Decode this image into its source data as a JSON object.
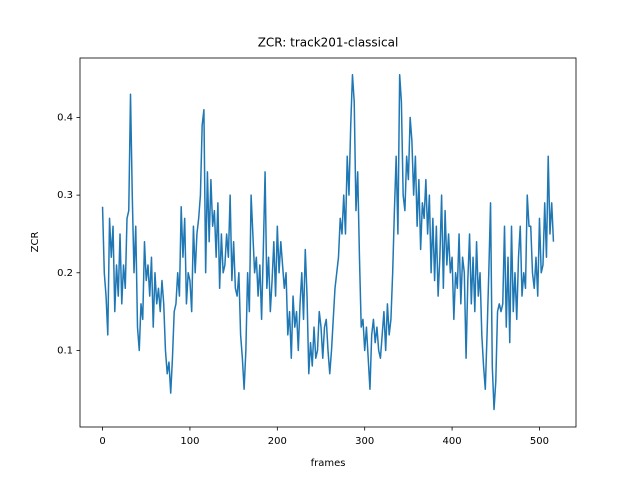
{
  "chart_data": {
    "type": "line",
    "title": "ZCR: track201-classical",
    "x_label": "frames",
    "y_label": "ZCR",
    "color": "#1f77b4",
    "xlim": [
      -25.8,
      541.8
    ],
    "ylim": [
      0.0014,
      0.4766
    ],
    "xticks": [
      0,
      100,
      200,
      300,
      400,
      500
    ],
    "yticks": [
      0.1,
      0.2,
      0.3,
      0.4
    ],
    "grid": false,
    "x": [
      0,
      2,
      4,
      6,
      8,
      10,
      12,
      14,
      16,
      18,
      20,
      22,
      24,
      26,
      28,
      30,
      32,
      34,
      36,
      38,
      40,
      42,
      44,
      46,
      48,
      50,
      52,
      54,
      56,
      58,
      60,
      62,
      64,
      66,
      68,
      70,
      72,
      74,
      76,
      78,
      80,
      82,
      84,
      86,
      88,
      90,
      92,
      94,
      96,
      98,
      100,
      102,
      104,
      106,
      108,
      110,
      112,
      114,
      116,
      118,
      120,
      122,
      124,
      126,
      128,
      130,
      132,
      134,
      136,
      138,
      140,
      142,
      144,
      146,
      148,
      150,
      152,
      154,
      156,
      158,
      160,
      162,
      164,
      166,
      168,
      170,
      172,
      174,
      176,
      178,
      180,
      182,
      184,
      186,
      188,
      190,
      192,
      194,
      196,
      198,
      200,
      202,
      204,
      206,
      208,
      210,
      212,
      214,
      216,
      218,
      220,
      222,
      224,
      226,
      228,
      230,
      232,
      234,
      236,
      238,
      240,
      242,
      244,
      246,
      248,
      250,
      252,
      254,
      256,
      258,
      260,
      262,
      264,
      266,
      268,
      270,
      272,
      274,
      276,
      278,
      280,
      282,
      284,
      286,
      288,
      290,
      292,
      294,
      296,
      298,
      300,
      302,
      304,
      306,
      308,
      310,
      312,
      314,
      316,
      318,
      320,
      322,
      324,
      326,
      328,
      330,
      332,
      334,
      336,
      338,
      340,
      342,
      344,
      346,
      348,
      350,
      352,
      354,
      356,
      358,
      360,
      362,
      364,
      366,
      368,
      370,
      372,
      374,
      376,
      378,
      380,
      382,
      384,
      386,
      388,
      390,
      392,
      394,
      396,
      398,
      400,
      402,
      404,
      406,
      408,
      410,
      412,
      414,
      416,
      418,
      420,
      422,
      424,
      426,
      428,
      430,
      432,
      434,
      436,
      438,
      440,
      442,
      444,
      446,
      448,
      450,
      452,
      454,
      456,
      458,
      460,
      462,
      464,
      466,
      468,
      470,
      472,
      474,
      476,
      478,
      480,
      482,
      484,
      486,
      488,
      490,
      492,
      494,
      496,
      498,
      500,
      502,
      504,
      506,
      508,
      510,
      512,
      514,
      516
    ],
    "values": [
      0.285,
      0.2,
      0.17,
      0.12,
      0.27,
      0.22,
      0.26,
      0.15,
      0.21,
      0.17,
      0.25,
      0.16,
      0.21,
      0.18,
      0.27,
      0.28,
      0.43,
      0.3,
      0.2,
      0.26,
      0.13,
      0.1,
      0.16,
      0.14,
      0.24,
      0.19,
      0.21,
      0.17,
      0.22,
      0.13,
      0.2,
      0.16,
      0.18,
      0.15,
      0.19,
      0.16,
      0.1,
      0.07,
      0.085,
      0.045,
      0.09,
      0.15,
      0.16,
      0.2,
      0.17,
      0.285,
      0.22,
      0.27,
      0.16,
      0.2,
      0.19,
      0.15,
      0.26,
      0.2,
      0.25,
      0.27,
      0.3,
      0.39,
      0.41,
      0.2,
      0.33,
      0.24,
      0.32,
      0.26,
      0.28,
      0.22,
      0.29,
      0.18,
      0.25,
      0.2,
      0.21,
      0.25,
      0.22,
      0.3,
      0.19,
      0.24,
      0.18,
      0.17,
      0.2,
      0.12,
      0.09,
      0.05,
      0.1,
      0.2,
      0.15,
      0.3,
      0.25,
      0.2,
      0.22,
      0.17,
      0.21,
      0.14,
      0.23,
      0.33,
      0.18,
      0.22,
      0.15,
      0.19,
      0.24,
      0.17,
      0.26,
      0.2,
      0.24,
      0.21,
      0.18,
      0.2,
      0.12,
      0.15,
      0.09,
      0.17,
      0.13,
      0.15,
      0.1,
      0.16,
      0.2,
      0.14,
      0.23,
      0.17,
      0.07,
      0.11,
      0.08,
      0.13,
      0.09,
      0.1,
      0.15,
      0.13,
      0.09,
      0.13,
      0.14,
      0.1,
      0.07,
      0.1,
      0.14,
      0.18,
      0.2,
      0.22,
      0.27,
      0.25,
      0.3,
      0.25,
      0.35,
      0.3,
      0.39,
      0.455,
      0.42,
      0.28,
      0.33,
      0.22,
      0.13,
      0.14,
      0.1,
      0.13,
      0.09,
      0.05,
      0.12,
      0.14,
      0.11,
      0.13,
      0.1,
      0.09,
      0.12,
      0.15,
      0.1,
      0.16,
      0.12,
      0.14,
      0.2,
      0.28,
      0.35,
      0.25,
      0.455,
      0.42,
      0.3,
      0.28,
      0.35,
      0.32,
      0.4,
      0.37,
      0.3,
      0.35,
      0.26,
      0.32,
      0.23,
      0.29,
      0.27,
      0.32,
      0.25,
      0.3,
      0.2,
      0.27,
      0.19,
      0.26,
      0.17,
      0.22,
      0.3,
      0.18,
      0.28,
      0.21,
      0.25,
      0.2,
      0.22,
      0.14,
      0.2,
      0.18,
      0.25,
      0.16,
      0.22,
      0.2,
      0.09,
      0.19,
      0.25,
      0.16,
      0.22,
      0.15,
      0.24,
      0.17,
      0.2,
      0.12,
      0.08,
      0.05,
      0.12,
      0.2,
      0.29,
      0.08,
      0.024,
      0.06,
      0.15,
      0.16,
      0.15,
      0.16,
      0.26,
      0.13,
      0.22,
      0.11,
      0.26,
      0.15,
      0.2,
      0.14,
      0.22,
      0.26,
      0.17,
      0.2,
      0.18,
      0.3,
      0.26,
      0.26,
      0.2,
      0.18,
      0.22,
      0.17,
      0.27,
      0.2,
      0.21,
      0.29,
      0.22,
      0.35,
      0.25,
      0.29,
      0.24
    ]
  }
}
